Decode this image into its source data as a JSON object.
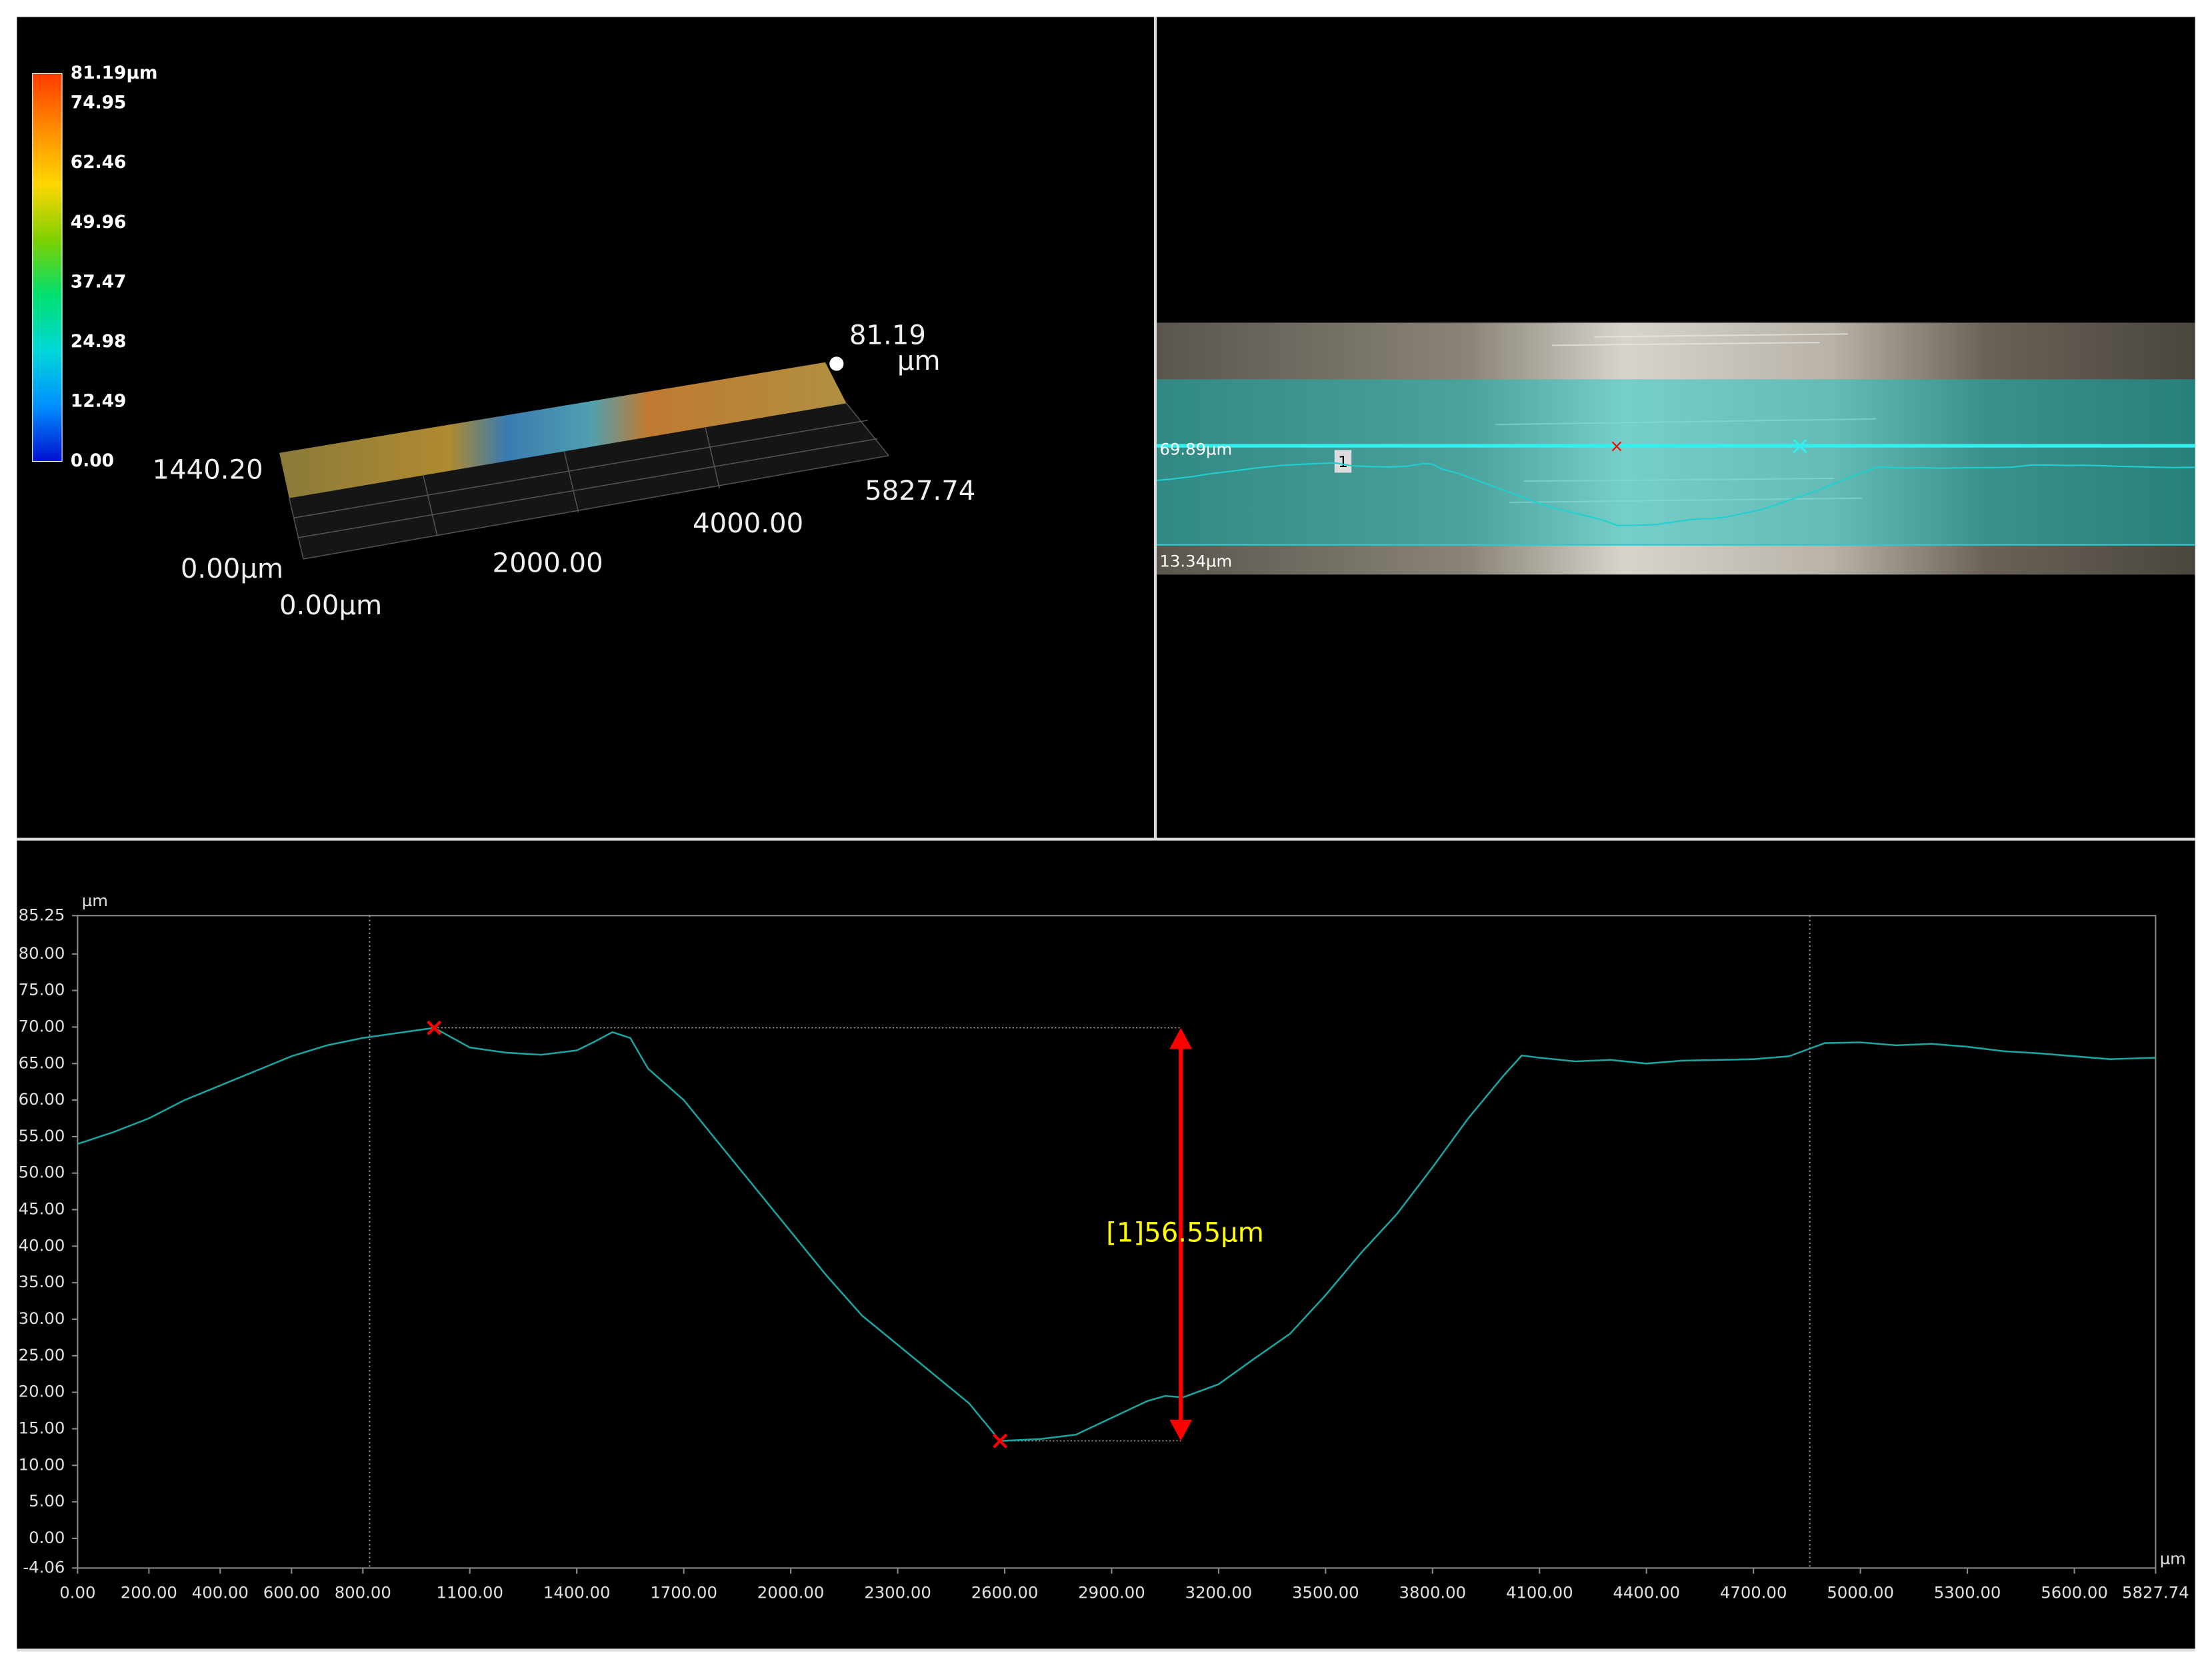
{
  "view3d": {
    "colorbar": {
      "lim": [
        0,
        81.19
      ],
      "ticks": [
        {
          "value": 81.19,
          "label": "81.19µm"
        },
        74.95,
        62.46,
        49.96,
        37.47,
        24.98,
        12.49,
        {
          "value": 0,
          "label": "0.00"
        }
      ],
      "colors": [
        "#ff3a00",
        "#ff8c00",
        "#ffd700",
        "#7fd000",
        "#00e070",
        "#00d8d8",
        "#0090ff",
        "#0010d0"
      ]
    },
    "labels": [
      "81.19",
      "µm",
      "1440.20",
      "0.00µm",
      "0.00µm",
      "2000.00",
      "4000.00",
      "5827.74"
    ]
  },
  "image_view": {
    "labels": [
      "69.89µm",
      "13.34µm",
      "1"
    ]
  },
  "chart_data": {
    "type": "line",
    "x_unit": "µm",
    "y_unit": "µm",
    "x": [
      0,
      100,
      200,
      300,
      400,
      500,
      600,
      700,
      800,
      900,
      1000,
      1100,
      1200,
      1300,
      1400,
      1450,
      1500,
      1550,
      1600,
      1700,
      1800,
      1900,
      2000,
      2100,
      2200,
      2300,
      2400,
      2500,
      2587,
      2700,
      2800,
      2900,
      3000,
      3050,
      3100,
      3200,
      3300,
      3400,
      3500,
      3600,
      3700,
      3800,
      3900,
      4000,
      4050,
      4100,
      4200,
      4300,
      4400,
      4500,
      4600,
      4700,
      4800,
      4900,
      5000,
      5100,
      5200,
      5300,
      5400,
      5500,
      5600,
      5700,
      5827.74
    ],
    "values": [
      54.0,
      55.6,
      57.5,
      60.0,
      62.0,
      64.0,
      66.0,
      67.5,
      68.5,
      69.2,
      69.89,
      67.2,
      66.5,
      66.2,
      66.8,
      68.0,
      69.3,
      68.5,
      64.3,
      60.0,
      54.0,
      48.0,
      42.0,
      36.0,
      30.5,
      26.5,
      22.5,
      18.5,
      13.34,
      13.6,
      14.2,
      16.5,
      18.8,
      19.5,
      19.3,
      21.1,
      24.6,
      28.0,
      33.3,
      39.1,
      44.4,
      50.8,
      57.5,
      63.4,
      66.1,
      65.8,
      65.3,
      65.5,
      65.0,
      65.4,
      65.5,
      65.6,
      66.0,
      67.8,
      67.9,
      67.5,
      67.7,
      67.3,
      66.7,
      66.4,
      66.0,
      65.6,
      65.8
    ],
    "color": "#1aa5a0",
    "xlim": [
      0,
      5827.74
    ],
    "ylim": [
      -4.06,
      85.25
    ],
    "xticks": [
      {
        "value": 0,
        "label": "0.00"
      },
      {
        "value": 200,
        "label": "200.00"
      },
      {
        "value": 400,
        "label": "400.00"
      },
      {
        "value": 600,
        "label": "600.00"
      },
      {
        "value": 800,
        "label": "800.00"
      },
      {
        "value": 1100,
        "label": "1100.00"
      },
      {
        "value": 1400,
        "label": "1400.00"
      },
      {
        "value": 1700,
        "label": "1700.00"
      },
      {
        "value": 2000,
        "label": "2000.00"
      },
      {
        "value": 2300,
        "label": "2300.00"
      },
      {
        "value": 2600,
        "label": "2600.00"
      },
      {
        "value": 2900,
        "label": "2900.00"
      },
      {
        "value": 3200,
        "label": "3200.00"
      },
      {
        "value": 3500,
        "label": "3500.00"
      },
      {
        "value": 3800,
        "label": "3800.00"
      },
      {
        "value": 4100,
        "label": "4100.00"
      },
      {
        "value": 4400,
        "label": "4400.00"
      },
      {
        "value": 4700,
        "label": "4700.00"
      },
      {
        "value": 5000,
        "label": "5000.00"
      },
      {
        "value": 5300,
        "label": "5300.00"
      },
      {
        "value": 5600,
        "label": "5600.00"
      },
      5827.74
    ],
    "yticks": [
      -4.06,
      {
        "value": 0,
        "label": "0.00"
      },
      {
        "value": 5,
        "label": "5.00"
      },
      {
        "value": 10,
        "label": "10.00"
      },
      {
        "value": 15,
        "label": "15.00"
      },
      {
        "value": 20,
        "label": "20.00"
      },
      {
        "value": 25,
        "label": "25.00"
      },
      {
        "value": 30,
        "label": "30.00"
      },
      {
        "value": 35,
        "label": "35.00"
      },
      {
        "value": 40,
        "label": "40.00"
      },
      {
        "value": 45,
        "label": "45.00"
      },
      {
        "value": 50,
        "label": "50.00"
      },
      {
        "value": 55,
        "label": "55.00"
      },
      {
        "value": 60,
        "label": "60.00"
      },
      {
        "value": 65,
        "label": "65.00"
      },
      {
        "value": 70,
        "label": "70.00"
      },
      {
        "value": 75,
        "label": "75.00"
      },
      {
        "value": 80,
        "label": "80.00"
      },
      85.25
    ],
    "cursors": [
      819,
      4858
    ],
    "markers": [
      {
        "x": 1000,
        "y": 69.89
      },
      {
        "x": 2587,
        "y": 13.34
      }
    ],
    "measurement": {
      "x": 3094,
      "value": 56.55,
      "label": "[1]56.55µm",
      "color": "#ff0000"
    }
  }
}
